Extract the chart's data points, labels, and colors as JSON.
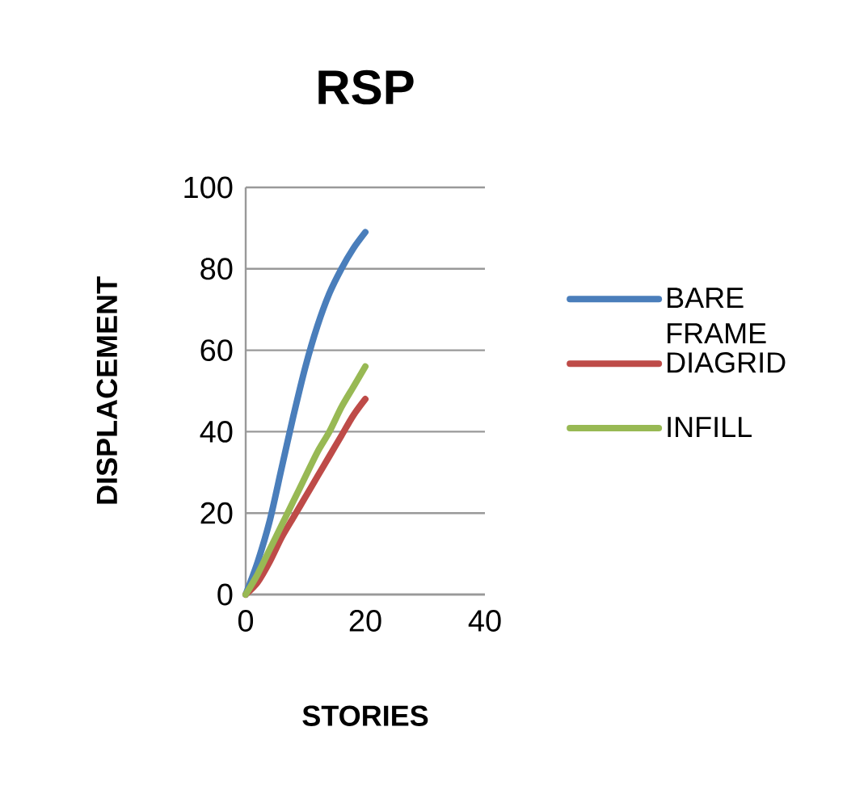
{
  "chart_data": {
    "type": "line",
    "title": "RSP",
    "xlabel": "STORIES",
    "ylabel": "DISPLACEMENT",
    "x": [
      0,
      2,
      4,
      6,
      8,
      10,
      12,
      14,
      16,
      18,
      20
    ],
    "series": [
      {
        "name": "BARE FRAME",
        "color": "#4a7ebb",
        "values": [
          0,
          8,
          18,
          31,
          44,
          56,
          66,
          74,
          80,
          85,
          89
        ]
      },
      {
        "name": "DIAGRID",
        "color": "#be4b48",
        "values": [
          0,
          3,
          8,
          14,
          19,
          24,
          29,
          34,
          39,
          44,
          48
        ]
      },
      {
        "name": "INFILL",
        "color": "#98b954",
        "values": [
          0,
          5,
          11,
          17,
          23,
          29,
          35,
          40,
          46,
          51,
          56
        ]
      }
    ],
    "xlim": [
      0,
      40
    ],
    "xticks": [
      0,
      20,
      40
    ],
    "ylim": [
      0,
      100
    ],
    "yticks": [
      0,
      20,
      40,
      60,
      80,
      100
    ],
    "grid": "y",
    "legend": "right",
    "marker": "none",
    "line_style": "solid"
  }
}
